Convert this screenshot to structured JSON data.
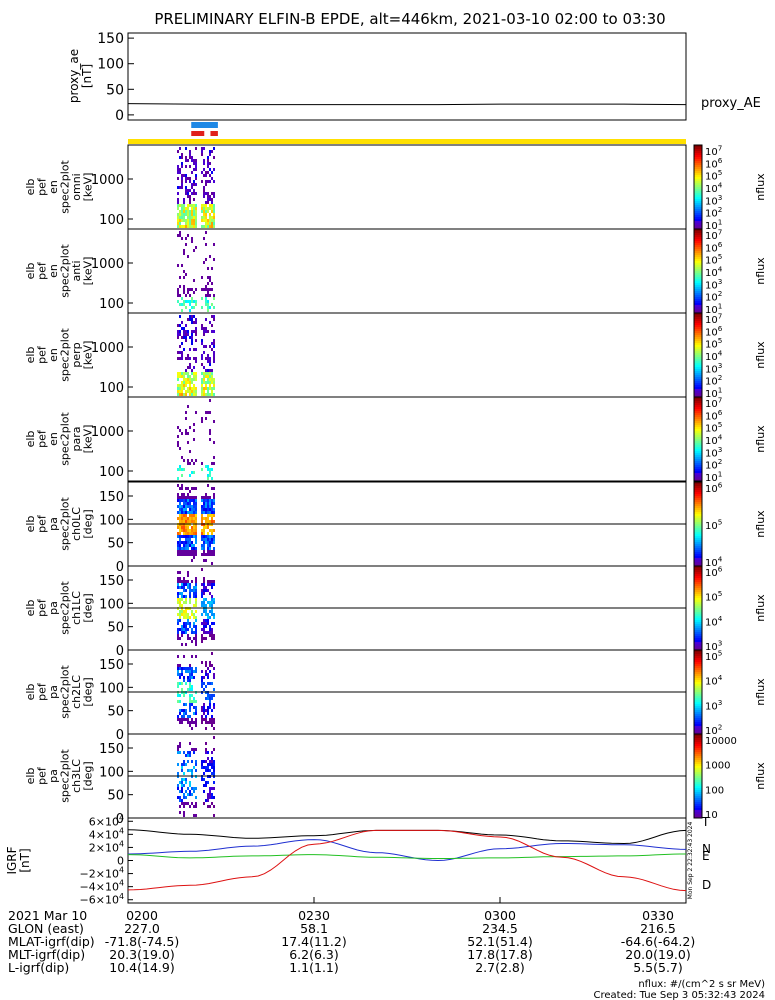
{
  "title": "PRELIMINARY ELFIN-B EPDE, alt=446km, 2021-03-10 02:00 to 03:30",
  "colors": {
    "proxy_line": "#000000",
    "blue_bar": "#1e88e5",
    "red_bar": "#e0201b",
    "yellow_bar": "#ffe000",
    "grf_t": "#000000",
    "grf_n": "#1f2fd0",
    "grf_e": "#22c022",
    "grf_d": "#dd1111",
    "hline": "#000000"
  },
  "chart_data": [
    {
      "type": "line",
      "name": "proxy_ae",
      "ylabel": "proxy_ae\n[nT]",
      "legend": "proxy_AE",
      "ylim": [
        -10,
        160
      ],
      "yticks": [
        "0",
        "50",
        "100",
        "150"
      ],
      "x_minutes": [
        0,
        10,
        20,
        30,
        40,
        50,
        60,
        70,
        80,
        90
      ],
      "values": [
        22,
        21,
        20,
        20,
        20,
        20,
        21,
        21,
        21,
        20
      ]
    },
    {
      "type": "table",
      "name": "orbit_bars",
      "blue": [
        [
          10.2,
          14.5
        ]
      ],
      "red": [
        [
          10.2,
          12.3
        ],
        [
          13.3,
          14.5
        ]
      ],
      "yellow": [
        [
          0,
          90
        ]
      ]
    },
    {
      "type": "heatmap",
      "name": "omni",
      "ylabel_lines": [
        "elb",
        "pef",
        "en",
        "spec2plot",
        "omni",
        "[keV]"
      ],
      "yticks": [
        "100",
        "1000"
      ],
      "colorbar_ticks": [
        "10^7",
        "10^6",
        "10^5",
        "10^4",
        "10^3",
        "10^2",
        "10^1"
      ],
      "colorbar_label": "nflux"
    },
    {
      "type": "heatmap",
      "name": "anti",
      "ylabel_lines": [
        "elb",
        "pef",
        "en",
        "spec2plot",
        "anti",
        "[keV]"
      ],
      "yticks": [
        "100",
        "1000"
      ],
      "colorbar_ticks": [
        "10^7",
        "10^6",
        "10^5",
        "10^4",
        "10^3",
        "10^2",
        "10^1"
      ],
      "colorbar_label": "nflux"
    },
    {
      "type": "heatmap",
      "name": "perp",
      "ylabel_lines": [
        "elb",
        "pef",
        "en",
        "spec2plot",
        "perp",
        "[keV]"
      ],
      "yticks": [
        "100",
        "1000"
      ],
      "colorbar_ticks": [
        "10^7",
        "10^6",
        "10^5",
        "10^4",
        "10^3",
        "10^2",
        "10^1"
      ],
      "colorbar_label": "nflux"
    },
    {
      "type": "heatmap",
      "name": "para",
      "ylabel_lines": [
        "elb",
        "pef",
        "en",
        "spec2plot",
        "para",
        "[keV]"
      ],
      "yticks": [
        "100",
        "1000"
      ],
      "colorbar_ticks": [
        "10^7",
        "10^6",
        "10^5",
        "10^4",
        "10^3",
        "10^2",
        "10^1"
      ],
      "colorbar_label": "nflux"
    },
    {
      "type": "heatmap",
      "name": "ch0LC",
      "ylabel_lines": [
        "elb",
        "pef",
        "pa",
        "spec2plot",
        "ch0LC",
        "[deg]"
      ],
      "yticks": [
        "0",
        "50",
        "100",
        "150"
      ],
      "ylim": [
        0,
        180
      ],
      "hline_deg": 90,
      "colorbar_ticks": [
        "10^6",
        "10^5",
        "10^4"
      ],
      "colorbar_label": "nflux"
    },
    {
      "type": "heatmap",
      "name": "ch1LC",
      "ylabel_lines": [
        "elb",
        "pef",
        "pa",
        "spec2plot",
        "ch1LC",
        "[deg]"
      ],
      "yticks": [
        "0",
        "50",
        "100",
        "150"
      ],
      "ylim": [
        0,
        180
      ],
      "hline_deg": 90,
      "colorbar_ticks": [
        "10^6",
        "10^5",
        "10^4",
        "10^3"
      ],
      "colorbar_label": "nflux"
    },
    {
      "type": "heatmap",
      "name": "ch2LC",
      "ylabel_lines": [
        "elb",
        "pef",
        "pa",
        "spec2plot",
        "ch2LC",
        "[deg]"
      ],
      "yticks": [
        "0",
        "50",
        "100",
        "150"
      ],
      "ylim": [
        0,
        180
      ],
      "hline_deg": 90,
      "colorbar_ticks": [
        "10^5",
        "10^4",
        "10^3",
        "10^2"
      ],
      "colorbar_label": "nflux"
    },
    {
      "type": "heatmap",
      "name": "ch3LC",
      "ylabel_lines": [
        "elb",
        "pef",
        "pa",
        "spec2plot",
        "ch3LC",
        "[deg]"
      ],
      "yticks": [
        "0",
        "50",
        "100",
        "150"
      ],
      "ylim": [
        0,
        180
      ],
      "hline_deg": 90,
      "colorbar_ticks": [
        "10000",
        "1000",
        "100",
        "10"
      ],
      "colorbar_label": "nflux"
    },
    {
      "type": "line",
      "name": "IGRF",
      "ylabel": "IGRF\n[nT]",
      "ylim": [
        -65000,
        65000
      ],
      "yticks": [
        "6×10^4",
        "4×10^4",
        "2×10^4",
        "0",
        "−2×10^4",
        "−4×10^4",
        "−6×10^4"
      ],
      "ytick_values": [
        60000,
        40000,
        20000,
        0,
        -20000,
        -40000,
        -60000
      ],
      "x_minutes": [
        0,
        10,
        20,
        30,
        40,
        50,
        60,
        70,
        80,
        90
      ],
      "series": [
        {
          "name": "T",
          "values": [
            47000,
            40000,
            34000,
            38000,
            46000,
            46000,
            39000,
            30000,
            26000,
            46000
          ]
        },
        {
          "name": "N",
          "values": [
            10000,
            14000,
            22000,
            32000,
            12000,
            0,
            18000,
            26000,
            24000,
            17000
          ]
        },
        {
          "name": "E",
          "values": [
            9000,
            4000,
            7000,
            9000,
            5000,
            3000,
            4000,
            6000,
            7000,
            10000
          ]
        },
        {
          "name": "D",
          "values": [
            -45000,
            -38000,
            -25000,
            25000,
            46000,
            46000,
            36000,
            5000,
            -25000,
            -46000
          ]
        }
      ],
      "side_legend": [
        "T",
        "N",
        "E",
        "D"
      ]
    }
  ],
  "xaxis": {
    "tick_labels": [
      "0200",
      "0230",
      "0300",
      "0330"
    ],
    "row_labels": [
      "2021 Mar 10",
      "GLON (east)",
      "MLAT-igrf(dip)",
      "MLT-igrf(dip)",
      "L-igrf(dip)"
    ],
    "col_values": [
      [
        "0200",
        "0230",
        "0300",
        "0330"
      ],
      [
        "227.0",
        "58.1",
        "234.5",
        "216.5"
      ],
      [
        "-71.8(-74.5)",
        "17.4(11.2)",
        "52.1(51.4)",
        "-64.6(-64.2)"
      ],
      [
        "20.3(19.0)",
        "6.2(6.3)",
        "17.8(17.8)",
        "20.0(19.0)"
      ],
      [
        "10.4(14.9)",
        "1.1(1.1)",
        "2.7(2.8)",
        "5.5(5.7)"
      ]
    ]
  },
  "footer": {
    "units": "nflux: #/(cm^2 s sr MeV)",
    "created": "Created: Tue Sep  3 05:32:43 2024",
    "side_stamp": "Mon Sep  2 22:32:43 2024"
  }
}
